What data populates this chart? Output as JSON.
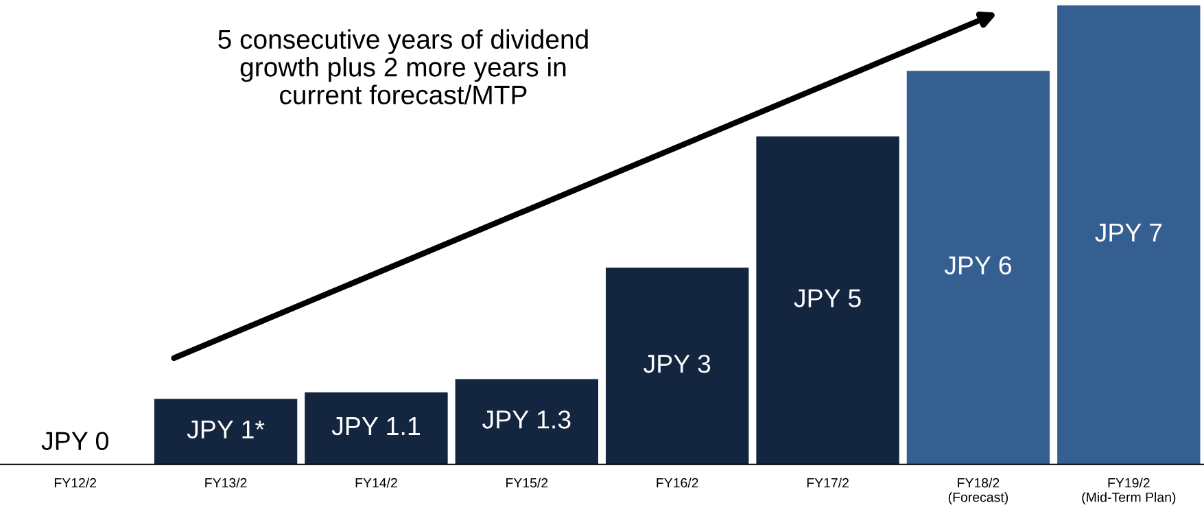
{
  "chart_data": {
    "type": "bar",
    "categories": [
      "FY12/2",
      "FY13/2",
      "FY14/2",
      "FY15/2",
      "FY16/2",
      "FY17/2",
      "FY18/2\n(Forecast)",
      "FY19/2\n(Mid-Term Plan)"
    ],
    "values": [
      0,
      1,
      1.1,
      1.3,
      3,
      5,
      6,
      7
    ],
    "colors": [
      "#13253f",
      "#13253f",
      "#13253f",
      "#13253f",
      "#13253f",
      "#13253f",
      "#365f91",
      "#365f91"
    ],
    "value_labels": [
      "JPY 0",
      "JPY 1*",
      "JPY 1.1",
      "JPY 1.3",
      "JPY 3",
      "JPY 5",
      "JPY 6",
      "JPY 7"
    ],
    "annotations": [
      "5 consecutive years of dividend\ngrowth plus 2 more years in\ncurrent forecast/MTP"
    ],
    "grid": false,
    "legend": false
  }
}
